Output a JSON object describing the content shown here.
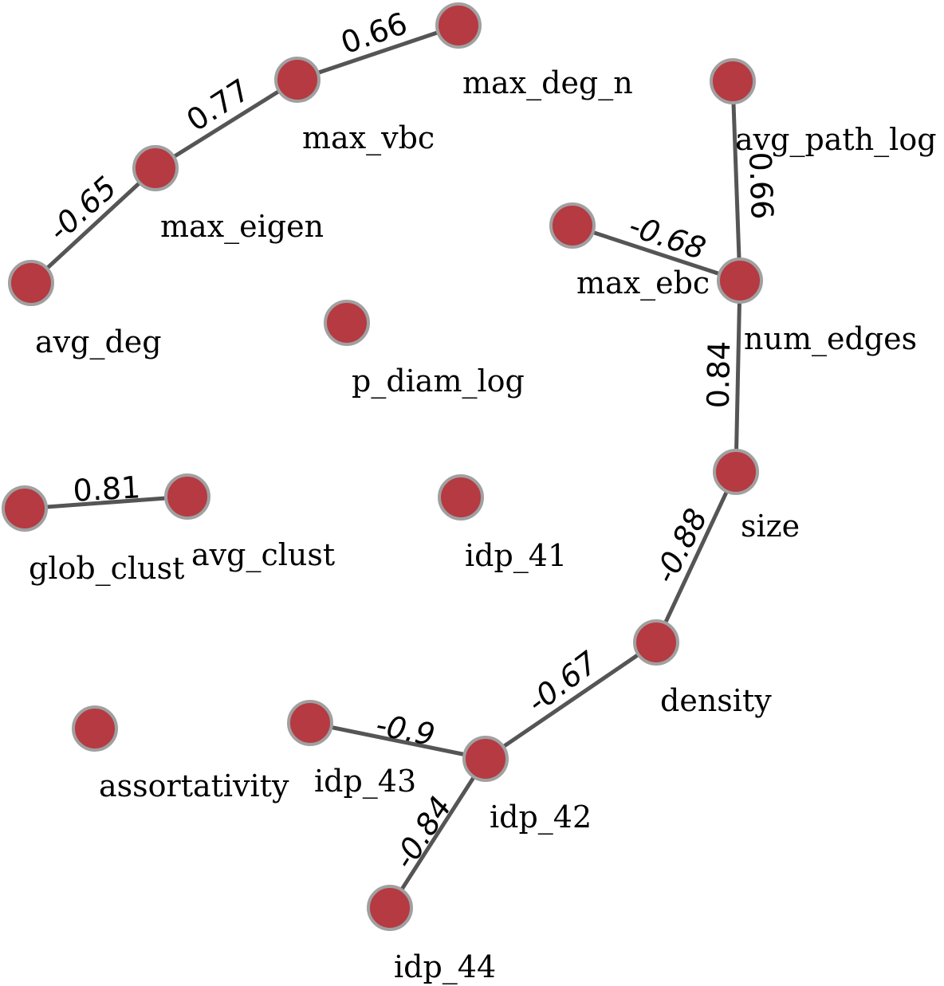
{
  "colors": {
    "node_fill": "#b53a42",
    "node_stroke": "#a0a0a0",
    "edge": "#555555"
  },
  "nodes": [
    {
      "id": "max_deg_n",
      "label": "max_deg_n"
    },
    {
      "id": "max_vbc",
      "label": "max_vbc"
    },
    {
      "id": "max_eigen",
      "label": "max_eigen"
    },
    {
      "id": "avg_deg",
      "label": "avg_deg"
    },
    {
      "id": "p_diam_log",
      "label": "p_diam_log"
    },
    {
      "id": "avg_path_log",
      "label": "avg_path_log"
    },
    {
      "id": "max_ebc",
      "label": "max_ebc"
    },
    {
      "id": "num_edges",
      "label": "num_edges"
    },
    {
      "id": "size",
      "label": "size"
    },
    {
      "id": "glob_clust",
      "label": "glob_clust"
    },
    {
      "id": "avg_clust",
      "label": "avg_clust"
    },
    {
      "id": "idp_41",
      "label": "idp_41"
    },
    {
      "id": "density",
      "label": "density"
    },
    {
      "id": "assortativity",
      "label": "assortativity"
    },
    {
      "id": "idp_43",
      "label": "idp_43"
    },
    {
      "id": "idp_42",
      "label": "idp_42"
    },
    {
      "id": "idp_44",
      "label": "idp_44"
    }
  ],
  "edges": [
    {
      "source": "max_vbc",
      "target": "max_deg_n",
      "weight": "0.66"
    },
    {
      "source": "max_eigen",
      "target": "max_vbc",
      "weight": "0.77"
    },
    {
      "source": "avg_deg",
      "target": "max_eigen",
      "weight": "-0.65"
    },
    {
      "source": "avg_path_log",
      "target": "num_edges",
      "weight": "0.66"
    },
    {
      "source": "max_ebc",
      "target": "num_edges",
      "weight": "-0.68"
    },
    {
      "source": "size",
      "target": "num_edges",
      "weight": "0.84"
    },
    {
      "source": "glob_clust",
      "target": "avg_clust",
      "weight": "0.81"
    },
    {
      "source": "density",
      "target": "size",
      "weight": "-0.88"
    },
    {
      "source": "idp_42",
      "target": "density",
      "weight": "-0.67"
    },
    {
      "source": "idp_43",
      "target": "idp_42",
      "weight": "-0.9"
    },
    {
      "source": "idp_44",
      "target": "idp_42",
      "weight": "-0.84"
    }
  ]
}
